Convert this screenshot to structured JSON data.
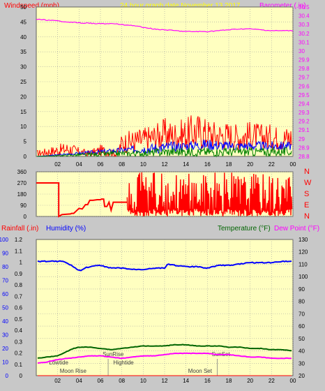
{
  "header": {
    "windspeed_label": "Windspeed (mph)",
    "graph_date_label": "24 hour graph date   November 13 2017",
    "barometer_label": "Barometer (.in)"
  },
  "colors": {
    "background": "#c8c8c8",
    "plot_bg": "#ffffc0",
    "grid": "#a0a0a0",
    "wind": "#ff0000",
    "wind_avg": "#0000ff",
    "wind_low": "#008000",
    "barometer": "#ff00ff",
    "humidity": "#0000ff",
    "temperature": "#006400",
    "dewpoint": "#ff00ff",
    "rain": "#ff0000",
    "date_label": "#ffff00",
    "axis_text": "#000000"
  },
  "x_ticks": [
    "02",
    "04",
    "06",
    "08",
    "10",
    "12",
    "14",
    "16",
    "18",
    "20",
    "22",
    "00"
  ],
  "direction_labels": [
    "N",
    "W",
    "S",
    "E",
    "N"
  ],
  "bottom_labels": {
    "rainfall": "Rainfall (.in)",
    "humidity": "Humidity (%)",
    "temperature": "Temperature (°F)",
    "dewpoint": "Dew Point (°F)"
  },
  "events": [
    {
      "label": "Lowtide",
      "hour": 1.2,
      "row": 1
    },
    {
      "label": "SunRise",
      "hour": 6.2,
      "row": 0
    },
    {
      "label": "Hightide",
      "hour": 7.2,
      "row": 1
    },
    {
      "label": "SunSet",
      "hour": 16.4,
      "row": 0
    },
    {
      "label": "Moon Rise",
      "hour": 2.2,
      "row": 2
    },
    {
      "label": "Moon Set",
      "hour": 14.2,
      "row": 2
    }
  ],
  "chart_data": [
    {
      "type": "line",
      "name": "wind-and-barometer",
      "xlim": [
        0,
        24
      ],
      "left_axis": {
        "label": "Windspeed (mph)",
        "ylim": [
          0,
          50
        ],
        "ticks": [
          0,
          5,
          10,
          15,
          20,
          25,
          30,
          35,
          40,
          45,
          50
        ]
      },
      "right_axis": {
        "label": "Barometer (.in)",
        "ylim": [
          28.8,
          30.5
        ],
        "ticks": [
          "28.8",
          "28.9",
          "29",
          "29.1",
          "29.2",
          "29.3",
          "29.4",
          "29.5",
          "29.6",
          "29.7",
          "29.8",
          "29.9",
          "30",
          "30.1",
          "30.2",
          "30.3",
          "30.4",
          "30.5"
        ]
      },
      "series": [
        {
          "role": "barometer",
          "axis": "right",
          "x": [
            0,
            2,
            4,
            6,
            7,
            8,
            9,
            10,
            11,
            12,
            13,
            14,
            15,
            16,
            17,
            18,
            19,
            20,
            21,
            22,
            23,
            24
          ],
          "values": [
            30.36,
            30.34,
            30.32,
            30.31,
            30.31,
            30.3,
            30.29,
            30.27,
            30.25,
            30.24,
            30.23,
            30.22,
            30.22,
            30.22,
            30.23,
            30.24,
            30.25,
            30.25,
            30.24,
            30.23,
            30.23,
            30.23
          ]
        },
        {
          "role": "wind_gust",
          "axis": "left",
          "envelope": {
            "x": [
              0,
              1,
              2,
              3,
              4,
              5,
              6,
              7,
              7.5,
              8,
              9,
              10,
              11,
              12,
              13,
              14,
              15,
              16,
              17,
              18,
              19,
              20,
              21,
              22,
              23,
              24
            ],
            "high": [
              2,
              3,
              4,
              5,
              3,
              2,
              4,
              3,
              1,
              8,
              9,
              10,
              11,
              13,
              12,
              13,
              15,
              13,
              12,
              12,
              11,
              12,
              11,
              11,
              10,
              11
            ],
            "low": [
              0,
              0,
              0,
              0,
              0,
              0,
              0,
              0,
              0,
              1,
              1,
              1,
              2,
              2,
              2,
              2,
              2,
              2,
              2,
              2,
              2,
              2,
              2,
              2,
              2,
              2
            ]
          }
        },
        {
          "role": "wind_avg",
          "axis": "left",
          "envelope": {
            "x": [
              0,
              8,
              10,
              12,
              14,
              16,
              18,
              20,
              22,
              24
            ],
            "high": [
              0,
              3,
              4,
              5,
              5,
              6,
              5,
              5,
              5,
              5
            ],
            "low": [
              0,
              1,
              1,
              1,
              2,
              2,
              2,
              2,
              2,
              2
            ]
          }
        },
        {
          "role": "wind_low",
          "axis": "left",
          "envelope": {
            "x": [
              0,
              8,
              10,
              12,
              14,
              16,
              18,
              20,
              22,
              24
            ],
            "high": [
              0,
              2,
              2,
              3,
              3,
              3,
              3,
              3,
              3,
              3
            ],
            "low": [
              0,
              0,
              0,
              0,
              0,
              0,
              0,
              0,
              0,
              0
            ]
          }
        }
      ]
    },
    {
      "type": "line",
      "name": "wind-direction",
      "xlim": [
        0,
        24
      ],
      "ylim": [
        0,
        360
      ],
      "ticks": [
        0,
        90,
        180,
        270,
        360
      ],
      "series": [
        {
          "role": "direction",
          "x": [
            0,
            2.1,
            2.1,
            2.4,
            3.2,
            3.3,
            3.5,
            4.0,
            4.3,
            4.6,
            4.8,
            5.0,
            5.3,
            5.7,
            6.0,
            6.1,
            6.3,
            6.4,
            6.6,
            6.8,
            7.0,
            7.2,
            7.6,
            8.0,
            8.3,
            8.5
          ],
          "values": [
            270,
            270,
            0,
            15,
            20,
            25,
            25,
            65,
            60,
            95,
            95,
            130,
            130,
            135,
            135,
            140,
            140,
            80,
            80,
            115,
            50,
            115,
            115,
            115,
            115,
            115
          ]
        },
        {
          "role": "direction_dense",
          "x_start": 8.5,
          "x_end": 24,
          "low": 0,
          "high": 360
        }
      ]
    },
    {
      "type": "line",
      "name": "humidity-temperature-dewpoint-rain",
      "xlim": [
        0,
        24
      ],
      "axes": {
        "rain": {
          "label": "Rainfall (.in)",
          "ylim": [
            0,
            1.2
          ],
          "ticks": [
            "0",
            "0.1",
            "0.2",
            "0.3",
            "0.4",
            "0.5",
            "0.6",
            "0.7",
            "0.8",
            "0.9",
            "1",
            "1.1",
            "1.2"
          ]
        },
        "humidity": {
          "label": "Humidity (%)",
          "ylim": [
            0,
            100
          ],
          "ticks": [
            0,
            10,
            20,
            30,
            40,
            50,
            60,
            70,
            80,
            90,
            100
          ]
        },
        "temperature": {
          "label": "Temperature (°F)",
          "ylim": [
            20,
            130
          ],
          "ticks": [
            20,
            30,
            40,
            50,
            60,
            70,
            80,
            90,
            100,
            110,
            120,
            130
          ]
        }
      },
      "series": [
        {
          "role": "humidity",
          "axis": "humidity",
          "x": [
            0,
            1,
            2,
            2.5,
            3,
            3.5,
            3.8,
            4.2,
            4.5,
            5,
            6,
            7,
            8,
            9,
            10,
            11,
            12,
            12.3,
            13,
            14,
            15,
            16,
            17,
            18,
            19,
            20,
            21,
            22,
            23,
            24
          ],
          "values": [
            84,
            84,
            84,
            84,
            82,
            80,
            78,
            77,
            79,
            80,
            81,
            79,
            79,
            78,
            78,
            79,
            79,
            82,
            81,
            80,
            80,
            79,
            81,
            81,
            82,
            83,
            83,
            83,
            84,
            84
          ]
        },
        {
          "role": "temperature",
          "axis": "temperature",
          "x": [
            0,
            1,
            2,
            3,
            3.5,
            4,
            5,
            6,
            7,
            8,
            9,
            10,
            11,
            12,
            13,
            14,
            15,
            16,
            17,
            18,
            19,
            20,
            21,
            22,
            23,
            24
          ],
          "values": [
            34,
            35,
            36,
            40,
            42,
            43,
            43,
            42,
            41,
            42,
            43,
            44,
            44,
            44,
            45,
            45,
            44,
            44,
            44,
            43,
            43,
            42,
            42,
            41,
            41,
            40
          ]
        },
        {
          "role": "dewpoint",
          "axis": "temperature",
          "x": [
            0,
            1,
            2,
            3,
            4,
            5,
            6,
            7,
            8,
            9,
            10,
            11,
            12,
            13,
            14,
            15,
            16,
            17,
            18,
            19,
            20,
            21,
            22,
            23,
            24
          ],
          "values": [
            30,
            31,
            33,
            34,
            35,
            36,
            36,
            35,
            34,
            35,
            36,
            36,
            37,
            38,
            38,
            38,
            38,
            37,
            37,
            36,
            35,
            35,
            34,
            34,
            34
          ]
        },
        {
          "role": "rain",
          "axis": "rain",
          "x": [
            0,
            24
          ],
          "values": [
            0,
            0
          ]
        }
      ]
    }
  ]
}
